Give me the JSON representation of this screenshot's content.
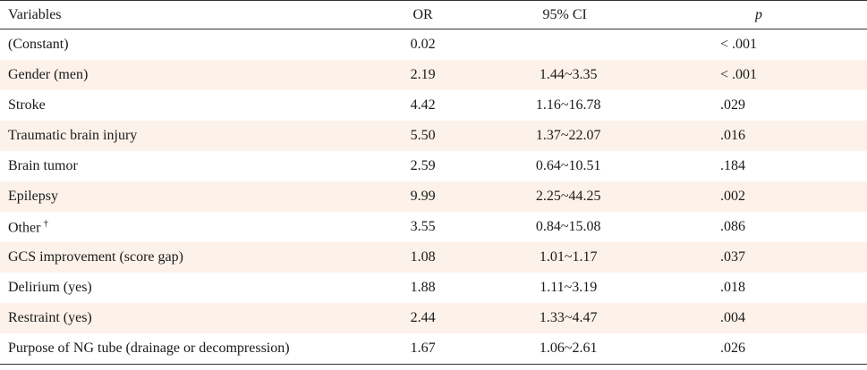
{
  "table": {
    "headers": {
      "variables": "Variables",
      "or": "OR",
      "ci": "95% CI",
      "p": "p"
    },
    "rows": [
      {
        "variable": "(Constant)",
        "or": "0.02",
        "ci": "",
        "p": "< .001"
      },
      {
        "variable": "Gender (men)",
        "or": "2.19",
        "ci": "1.44~3.35",
        "p": "< .001"
      },
      {
        "variable": "Stroke",
        "or": "4.42",
        "ci": "1.16~16.78",
        "p": ".029"
      },
      {
        "variable": "Traumatic brain injury",
        "or": "5.50",
        "ci": "1.37~22.07",
        "p": ".016"
      },
      {
        "variable": "Brain tumor",
        "or": "2.59",
        "ci": "0.64~10.51",
        "p": ".184"
      },
      {
        "variable": "Epilepsy",
        "or": "9.99",
        "ci": "2.25~44.25",
        "p": ".002"
      },
      {
        "variable": "Other",
        "marker": "†",
        "or": "3.55",
        "ci": "0.84~15.08",
        "p": ".086"
      },
      {
        "variable": "GCS improvement (score gap)",
        "or": "1.08",
        "ci": "1.01~1.17",
        "p": ".037"
      },
      {
        "variable": "Delirium (yes)",
        "or": "1.88",
        "ci": "1.11~3.19",
        "p": ".018"
      },
      {
        "variable": "Restraint (yes)",
        "or": "2.44",
        "ci": "1.33~4.47",
        "p": ".004"
      },
      {
        "variable": "Purpose of NG tube (drainage or decompression)",
        "or": "1.67",
        "ci": "1.06~2.61",
        "p": ".026"
      }
    ]
  }
}
